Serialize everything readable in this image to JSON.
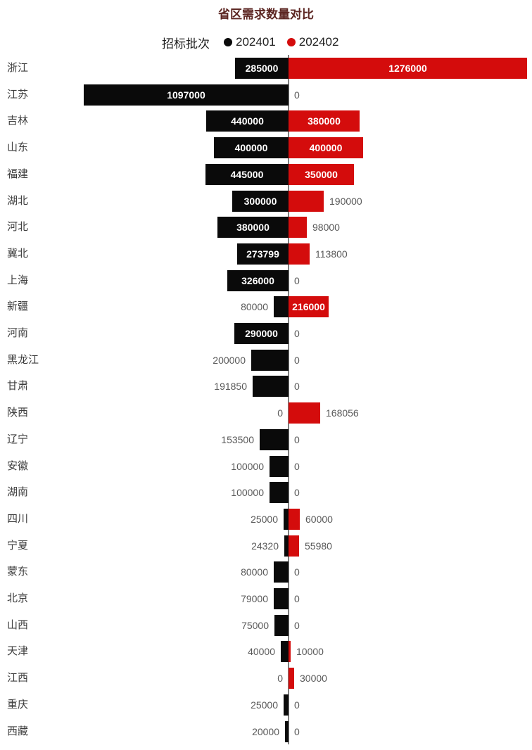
{
  "title": "省区需求数量对比",
  "legend": {
    "title": "招标批次",
    "items": [
      {
        "label": "202401",
        "color": "#0a0a0a"
      },
      {
        "label": "202402",
        "color": "#d40c0c"
      }
    ]
  },
  "chart_data": {
    "type": "bar",
    "subtype": "diverging-horizontal-tornado",
    "title": "省区需求数量对比",
    "legend_title": "招标批次",
    "legend_position": "top",
    "grid": false,
    "axis_line_color": "#7f7f7f",
    "inside_label_color": "#ffffff",
    "outside_label_color": "#595959",
    "left_axis_max": 1097000,
    "right_axis_max": 1276000,
    "categories": [
      "浙江",
      "江苏",
      "吉林",
      "山东",
      "福建",
      "湖北",
      "河北",
      "冀北",
      "上海",
      "新疆",
      "河南",
      "黑龙江",
      "甘肃",
      "陕西",
      "辽宁",
      "安徽",
      "湖南",
      "四川",
      "宁夏",
      "蒙东",
      "北京",
      "山西",
      "天津",
      "江西",
      "重庆",
      "西藏"
    ],
    "series": [
      {
        "name": "202401",
        "side": "left",
        "color": "#0a0a0a",
        "values": [
          285000,
          1097000,
          440000,
          400000,
          445000,
          300000,
          380000,
          273799,
          326000,
          80000,
          290000,
          200000,
          191850,
          0,
          153500,
          100000,
          100000,
          25000,
          24320,
          80000,
          79000,
          75000,
          40000,
          0,
          25000,
          20000
        ]
      },
      {
        "name": "202402",
        "side": "right",
        "color": "#d40c0c",
        "values": [
          1276000,
          0,
          380000,
          400000,
          350000,
          190000,
          98000,
          113800,
          0,
          216000,
          0,
          0,
          0,
          168056,
          0,
          0,
          0,
          60000,
          55980,
          0,
          0,
          0,
          10000,
          30000,
          0,
          0
        ]
      }
    ]
  }
}
